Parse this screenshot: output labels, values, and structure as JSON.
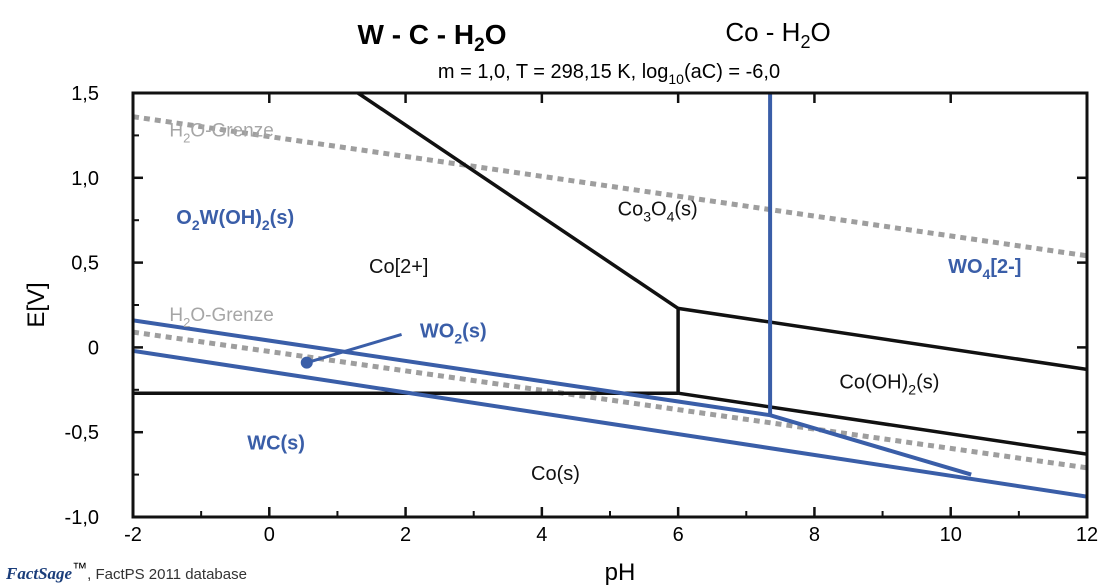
{
  "colors": {
    "blue": "#3a5ea8",
    "black": "#111111",
    "gray": "#9e9e9e",
    "grenze_text": "#a6a6a6"
  },
  "footer": {
    "logo": "FactSage",
    "tm": "™",
    "source": ", FactPS 2011 database"
  },
  "chart_data": {
    "type": "line",
    "title_wc": {
      "a": "W - C - H",
      "sub": "2",
      "b": "O"
    },
    "title_co": {
      "a": "Co - H",
      "sub": "2",
      "b": "O"
    },
    "subtitle": {
      "a": "m = 1,0, T = 298,15 K, log",
      "sub": "10",
      "b": "(aC) = -6,0"
    },
    "xlabel": "pH",
    "ylabel": "E[V]",
    "xlim": [
      -2,
      12
    ],
    "ylim": [
      -1.0,
      1.5
    ],
    "xticks": [
      {
        "v": -2,
        "label": "-2"
      },
      {
        "v": 0,
        "label": "0"
      },
      {
        "v": 2,
        "label": "2"
      },
      {
        "v": 4,
        "label": "4"
      },
      {
        "v": 6,
        "label": "6"
      },
      {
        "v": 8,
        "label": "8"
      },
      {
        "v": 10,
        "label": "10"
      },
      {
        "v": 12,
        "label": "12"
      }
    ],
    "yticks": [
      {
        "v": 1.5,
        "label": "1,5"
      },
      {
        "v": 1.0,
        "label": "1,0"
      },
      {
        "v": 0.5,
        "label": "0,5"
      },
      {
        "v": 0.0,
        "label": "0"
      },
      {
        "v": -0.5,
        "label": "-0,5"
      },
      {
        "v": -1.0,
        "label": "-1,0"
      }
    ],
    "series": [
      {
        "system": "water",
        "style": "dotted",
        "points": [
          [
            -2,
            1.36
          ],
          [
            12,
            0.54
          ]
        ]
      },
      {
        "system": "water",
        "style": "dotted",
        "points": [
          [
            -2,
            0.09
          ],
          [
            12,
            -0.71
          ]
        ]
      },
      {
        "system": "Co",
        "style": "solid",
        "points": [
          [
            1.3,
            1.5
          ],
          [
            6.0,
            0.23
          ],
          [
            6.0,
            -0.27
          ]
        ]
      },
      {
        "system": "Co",
        "style": "solid",
        "points": [
          [
            -2,
            -0.27
          ],
          [
            6.0,
            -0.27
          ]
        ]
      },
      {
        "system": "Co",
        "style": "solid",
        "points": [
          [
            6.0,
            0.23
          ],
          [
            12,
            -0.13
          ]
        ]
      },
      {
        "system": "Co",
        "style": "solid",
        "points": [
          [
            6.0,
            -0.27
          ],
          [
            12,
            -0.63
          ]
        ]
      },
      {
        "system": "W",
        "style": "solid",
        "points": [
          [
            7.35,
            1.5
          ],
          [
            7.35,
            -0.4
          ]
        ]
      },
      {
        "system": "W",
        "style": "solid",
        "points": [
          [
            -2,
            0.16
          ],
          [
            7.35,
            -0.4
          ],
          [
            10.3,
            -0.75
          ]
        ]
      },
      {
        "system": "W",
        "style": "solid",
        "points": [
          [
            -2,
            -0.02
          ],
          [
            12,
            -0.88
          ]
        ]
      }
    ],
    "leader": {
      "from": [
        0.55,
        -0.09
      ],
      "to": [
        2.0,
        0.1
      ]
    },
    "regions": [
      {
        "name": "co3o4",
        "system": "Co",
        "at": [
          5.7,
          0.82
        ],
        "a": "Co",
        "s1": "3",
        "b": "O",
        "s2": "4",
        "c": "(s)"
      },
      {
        "name": "co2plus",
        "system": "Co",
        "at": [
          1.9,
          0.48
        ],
        "a": "Co[2+]",
        "s1": "",
        "b": "",
        "s2": "",
        "c": ""
      },
      {
        "name": "cooh2",
        "system": "Co",
        "at": [
          9.1,
          -0.2
        ],
        "a": "Co(OH)",
        "s1": "2",
        "b": "(s)",
        "s2": "",
        "c": ""
      },
      {
        "name": "co",
        "system": "Co",
        "at": [
          4.2,
          -0.74
        ],
        "a": "Co(s)",
        "s1": "",
        "b": "",
        "s2": "",
        "c": ""
      },
      {
        "name": "o2woh2",
        "system": "W",
        "at": [
          -0.5,
          0.77
        ],
        "a": "O",
        "s1": "2",
        "b": "W(OH)",
        "s2": "2",
        "c": "(s)"
      },
      {
        "name": "wo4",
        "system": "W",
        "at": [
          10.5,
          0.48
        ],
        "a": "WO",
        "s1": "4",
        "b": "[2-]",
        "s2": "",
        "c": ""
      },
      {
        "name": "wo2",
        "system": "W",
        "at": [
          2.7,
          0.1
        ],
        "a": "WO",
        "s1": "2",
        "b": "(s)",
        "s2": "",
        "c": ""
      },
      {
        "name": "wc",
        "system": "W",
        "at": [
          0.1,
          -0.56
        ],
        "a": "WC(s)",
        "s1": "",
        "b": "",
        "s2": "",
        "c": ""
      }
    ],
    "grenze_labels": [
      {
        "name": "grenze-upper",
        "at": [
          -0.7,
          1.28
        ],
        "a": "H",
        "sub": "2",
        "b": "O-Grenze"
      },
      {
        "name": "grenze-lower",
        "at": [
          -0.7,
          0.19
        ],
        "a": "H",
        "sub": "2",
        "b": "O-Grenze"
      }
    ]
  }
}
